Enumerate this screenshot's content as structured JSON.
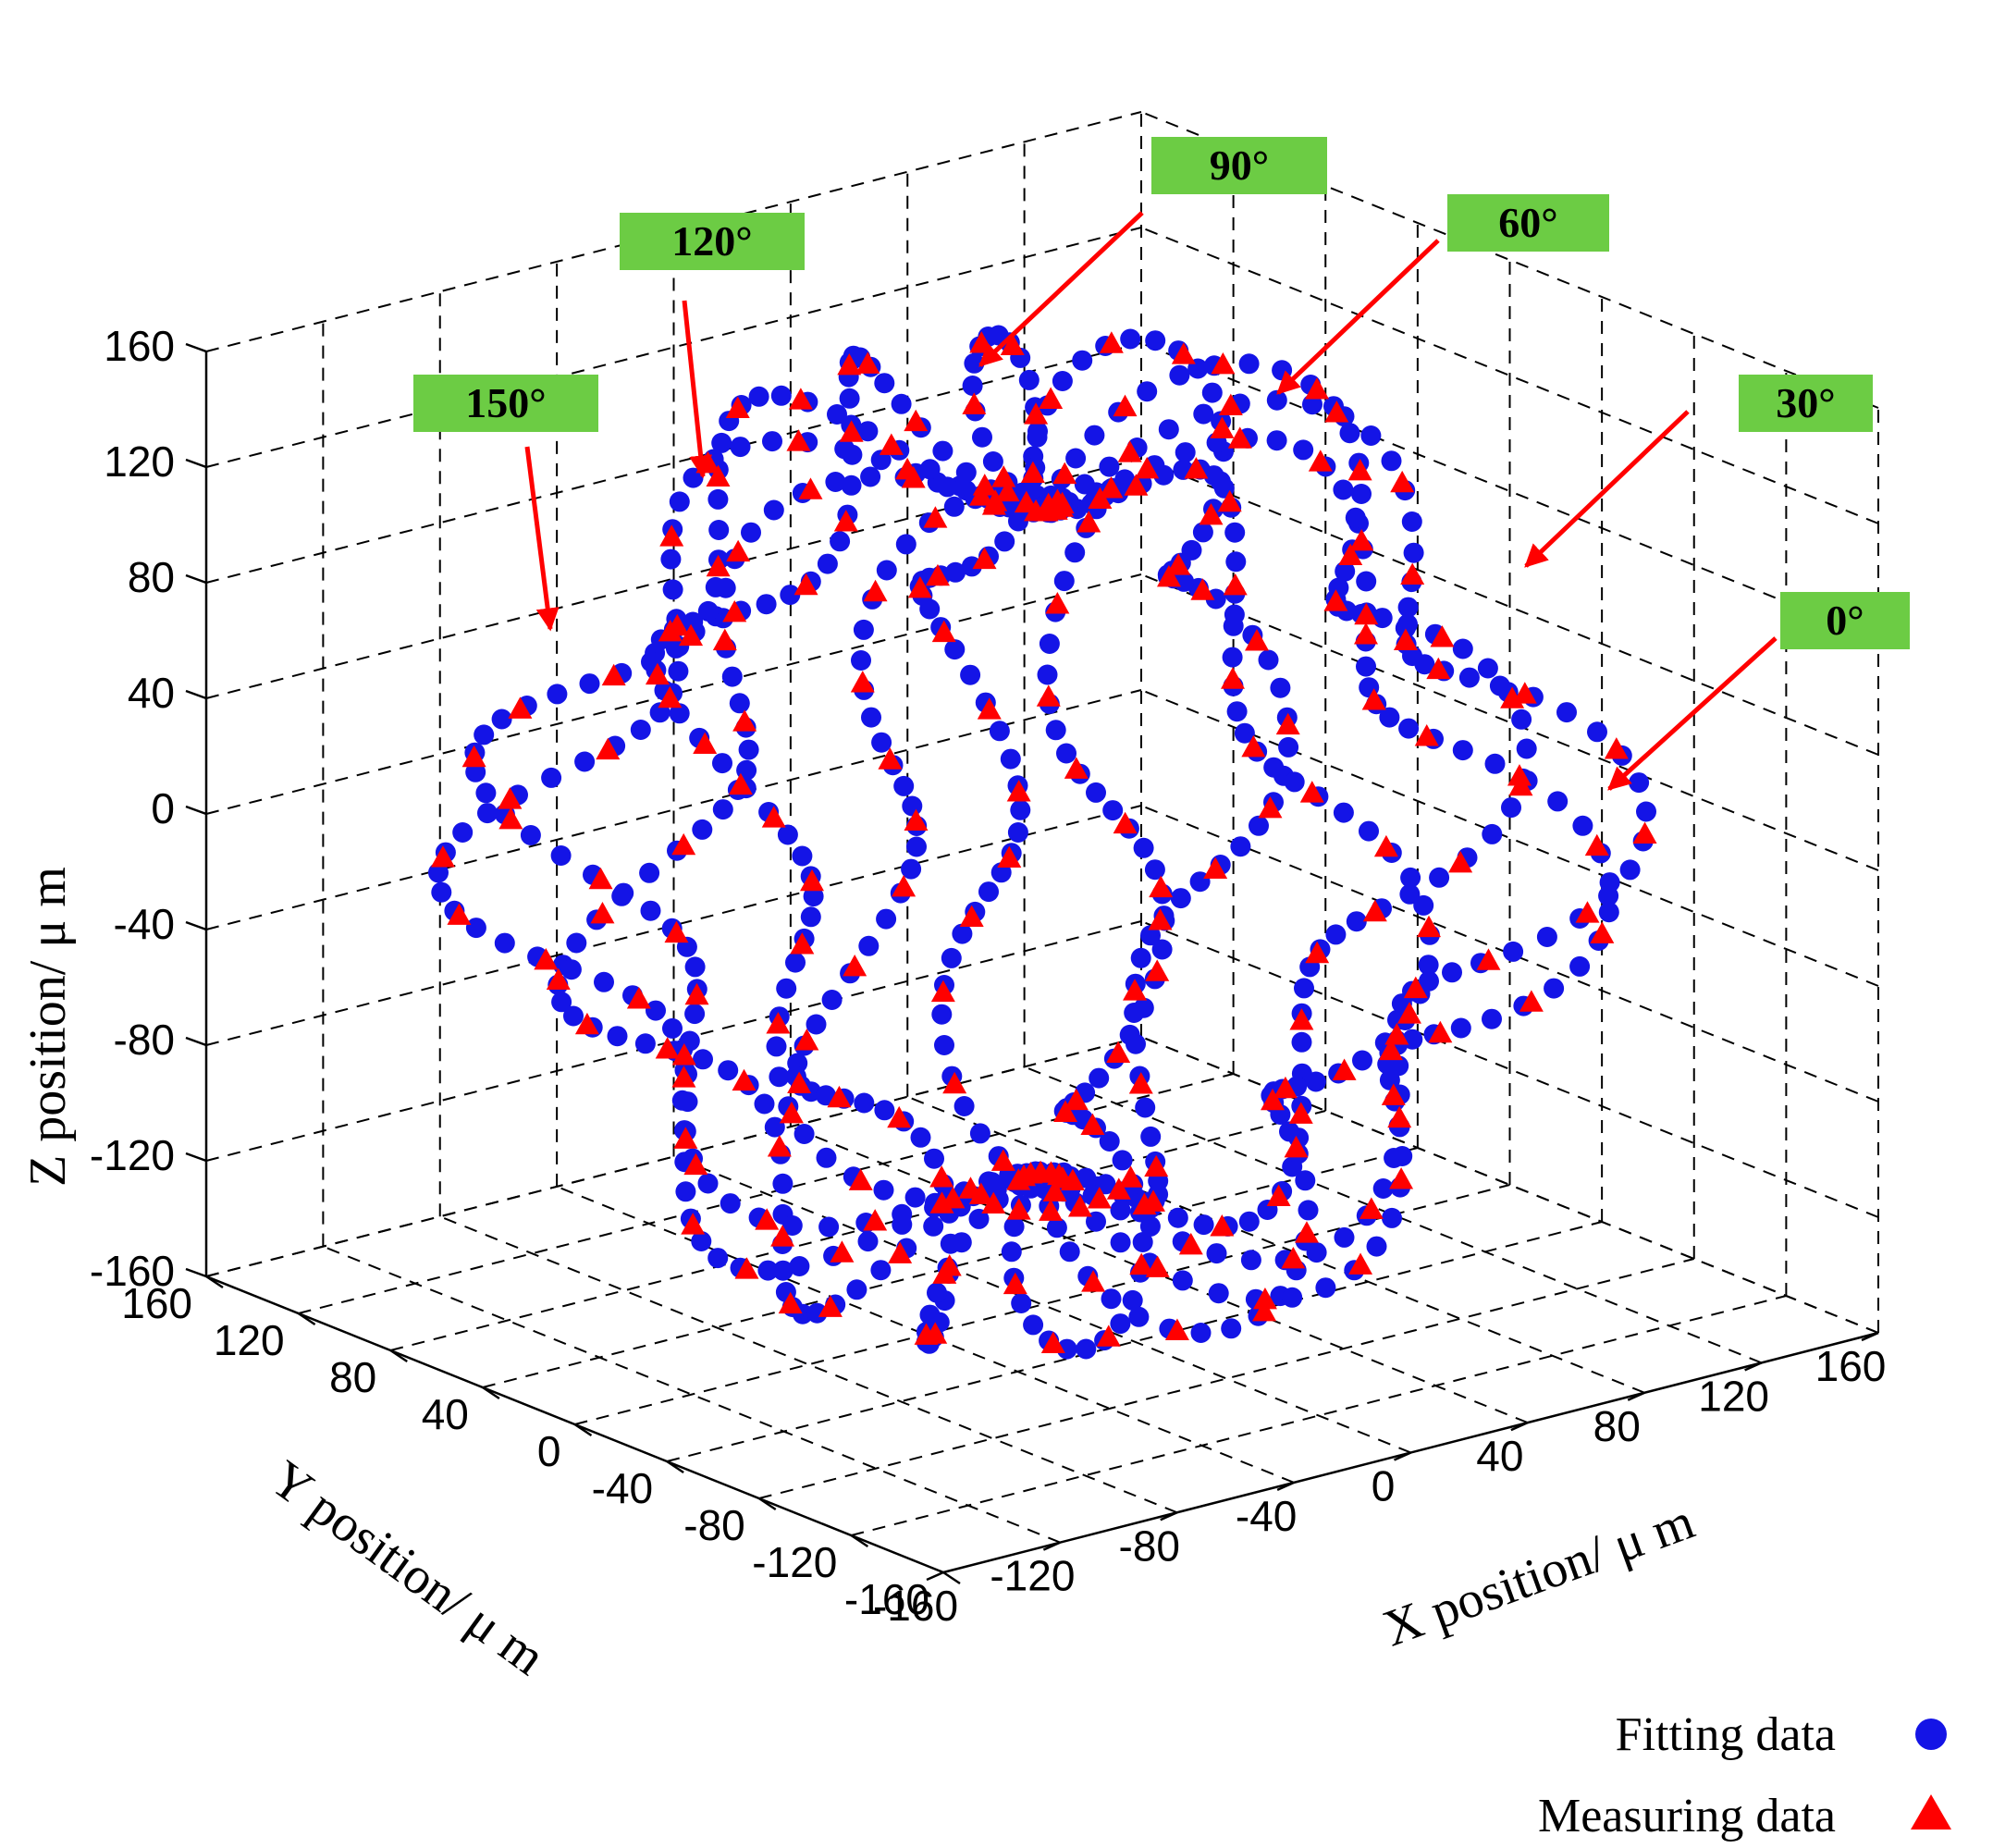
{
  "chart_data": {
    "type": "scatter",
    "projection": "3d",
    "grid": true,
    "legend_position": "bottom-right",
    "xlabel": "X position/ μ m",
    "ylabel": "Y position/ μ m",
    "zlabel": "Z position/ μ m",
    "xlim": [
      -160,
      160
    ],
    "ylim": [
      -160,
      160
    ],
    "zlim": [
      -160,
      160
    ],
    "xticks": [
      "-160",
      "-120",
      "-80",
      "-40",
      "0",
      "40",
      "80",
      "120",
      "160"
    ],
    "yticks": [
      "-160",
      "-120",
      "-80",
      "-40",
      "0",
      "40",
      "80",
      "120",
      "160"
    ],
    "zticks": [
      "-160",
      "-120",
      "-80",
      "-40",
      "0",
      "40",
      "80",
      "120",
      "160"
    ],
    "tick_values": [
      -160,
      -120,
      -80,
      -40,
      0,
      40,
      80,
      120,
      160
    ],
    "series": [
      {
        "name": "Fitting data",
        "marker": "circle",
        "color": "#1414e6"
      },
      {
        "name": "Measuring data",
        "marker": "triangle",
        "color": "#ff0000"
      }
    ],
    "trajectory": {
      "radius": 140,
      "loops_per_turn": 6,
      "loop_radius": 24,
      "turns": [
        {
          "angle_deg": 0,
          "fitting_points": 120,
          "measuring_points": 40
        },
        {
          "angle_deg": 30,
          "fitting_points": 120,
          "measuring_points": 40
        },
        {
          "angle_deg": 60,
          "fitting_points": 120,
          "measuring_points": 40
        },
        {
          "angle_deg": 90,
          "fitting_points": 120,
          "measuring_points": 40
        },
        {
          "angle_deg": 120,
          "fitting_points": 120,
          "measuring_points": 40
        },
        {
          "angle_deg": 150,
          "fitting_points": 120,
          "measuring_points": 40
        }
      ]
    },
    "annotations": [
      {
        "label": "0°",
        "angle_deg": 0
      },
      {
        "label": "30°",
        "angle_deg": 30
      },
      {
        "label": "60°",
        "angle_deg": 60
      },
      {
        "label": "90°",
        "angle_deg": 90
      },
      {
        "label": "120°",
        "angle_deg": 120
      },
      {
        "label": "150°",
        "angle_deg": 150
      }
    ],
    "annotation_box_color": "#6ccc44",
    "annotation_arrow_color": "#ff0000"
  }
}
